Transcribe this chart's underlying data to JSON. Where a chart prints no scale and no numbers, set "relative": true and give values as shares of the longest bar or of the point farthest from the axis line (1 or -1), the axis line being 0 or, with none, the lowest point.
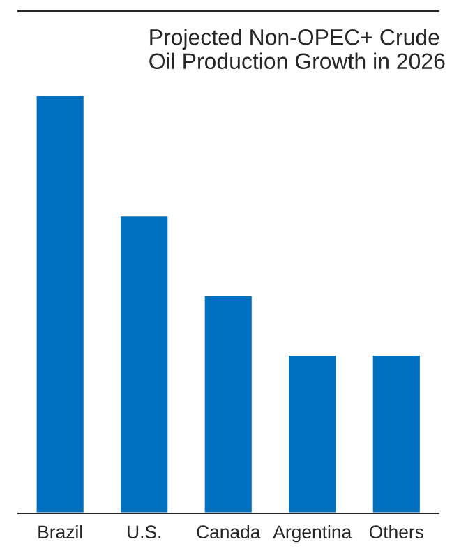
{
  "chart_data": {
    "type": "bar",
    "title": "Projected Non-OPEC+ Crude Oil Production Growth in 2026",
    "categories": [
      "Brazil",
      "U.S.",
      "Canada",
      "Argentina",
      "Others"
    ],
    "values": [
      1,
      0.712,
      0.521,
      0.379,
      0.379
    ],
    "color": "#0070c0",
    "relative": true,
    "grid": false,
    "legend": false
  }
}
